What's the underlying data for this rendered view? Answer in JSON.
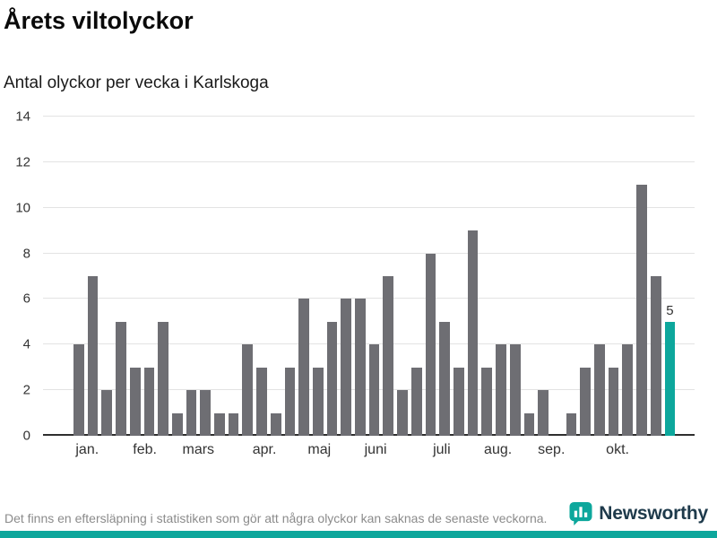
{
  "chart_data": {
    "type": "bar",
    "title": "Årets viltolyckor",
    "subtitle": "Antal olyckor per vecka i Karlskoga",
    "values": [
      4,
      7,
      2,
      5,
      3,
      3,
      5,
      1,
      2,
      2,
      1,
      1,
      4,
      3,
      1,
      3,
      6,
      3,
      5,
      6,
      6,
      4,
      7,
      2,
      3,
      8,
      5,
      3,
      9,
      3,
      4,
      4,
      1,
      2,
      0,
      1,
      3,
      4,
      3,
      4,
      11,
      7,
      5
    ],
    "highlight_index": 42,
    "highlight_value_label": "5",
    "ylim": [
      0,
      14
    ],
    "yticks": [
      0,
      2,
      4,
      6,
      8,
      10,
      12,
      14
    ],
    "month_ticks": [
      {
        "label": "jan.",
        "week_index": 0.6
      },
      {
        "label": "feb.",
        "week_index": 4.7
      },
      {
        "label": "mars",
        "week_index": 8.5
      },
      {
        "label": "apr.",
        "week_index": 13.2
      },
      {
        "label": "maj",
        "week_index": 17.1
      },
      {
        "label": "juni",
        "week_index": 21.1
      },
      {
        "label": "juli",
        "week_index": 25.8
      },
      {
        "label": "aug.",
        "week_index": 29.8
      },
      {
        "label": "sep.",
        "week_index": 33.6
      },
      {
        "label": "okt.",
        "week_index": 38.3
      }
    ],
    "grid": true,
    "legend": "none"
  },
  "footer": {
    "note": "Det finns en eftersläpning i statistiken som gör att några olyckor kan saknas de senaste veckorna.",
    "brand": "Newsworthy"
  },
  "colors": {
    "accent": "#0da79c",
    "bar": "#6e6e73",
    "grid": "#e3e3e3",
    "baseline": "#2f2f2f",
    "tick_text": "#333333",
    "footnote_text": "#8b8b8b",
    "brand_text": "#1e3a4b"
  }
}
